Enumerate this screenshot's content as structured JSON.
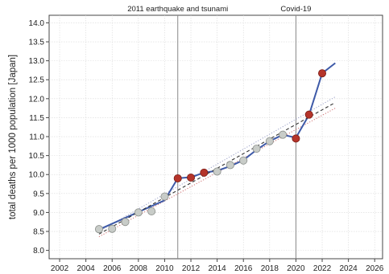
{
  "chart_data": {
    "type": "line",
    "title": "",
    "xlabel": "",
    "ylabel": "total deaths per 1000 population [Japan]",
    "xlim": [
      2001.2,
      2026.6
    ],
    "ylim": [
      7.78,
      14.2
    ],
    "xticks": [
      2002,
      2004,
      2006,
      2008,
      2010,
      2012,
      2014,
      2016,
      2018,
      2020,
      2022,
      2024,
      2026
    ],
    "xtick_labels": [
      "2002",
      "2004",
      "2006",
      "2008",
      "2010",
      "2012",
      "2014",
      "2016",
      "2018",
      "2020",
      "2022",
      "2024",
      "2026"
    ],
    "yticks": [
      8.0,
      8.5,
      9.0,
      9.5,
      10.0,
      10.5,
      11.0,
      11.5,
      12.0,
      12.5,
      13.0,
      13.5,
      14.0
    ],
    "ytick_labels": [
      "8.0",
      "8.5",
      "9.0",
      "9.5",
      "10.0",
      "10.5",
      "11.0",
      "11.5",
      "12.0",
      "12.5",
      "13.0",
      "13.5",
      "14.0"
    ],
    "grid": true,
    "events": [
      {
        "x": 2011,
        "label": "2011 earthquake and tsunami"
      },
      {
        "x": 2020,
        "label": "Covid-19"
      }
    ],
    "series": [
      {
        "kind": "points",
        "x": [
          2005,
          2006,
          2007,
          2008,
          2009,
          2010,
          2011,
          2012,
          2013,
          2014,
          2015,
          2016,
          2017,
          2018,
          2019,
          2020,
          2021,
          2022
        ],
        "y": [
          8.56,
          8.57,
          8.75,
          9.0,
          9.03,
          9.42,
          9.9,
          9.92,
          10.05,
          10.08,
          10.25,
          10.37,
          10.68,
          10.88,
          11.05,
          10.95,
          11.58,
          12.67
        ],
        "highlighted": [
          false,
          false,
          false,
          false,
          false,
          false,
          true,
          true,
          true,
          false,
          false,
          false,
          false,
          false,
          false,
          true,
          true,
          true
        ],
        "color_normal": "#c8ccc8",
        "color_highlight": "#b5342a"
      },
      {
        "kind": "line",
        "x": [
          2005,
          2010,
          2011,
          2012,
          2013,
          2014,
          2015,
          2016,
          2017,
          2018,
          2019,
          2020,
          2021,
          2022,
          2023
        ],
        "y": [
          8.55,
          9.32,
          9.9,
          9.93,
          10.05,
          10.1,
          10.22,
          10.38,
          10.65,
          10.88,
          11.05,
          10.97,
          11.57,
          12.67,
          12.94
        ],
        "color": "#3e5aa8"
      },
      {
        "kind": "trend",
        "x": [
          2005,
          2023
        ],
        "y": [
          8.43,
          11.9
        ],
        "color": "#333333",
        "style": "dashed"
      },
      {
        "kind": "band_upper",
        "x": [
          2005,
          2023
        ],
        "y": [
          8.5,
          12.05
        ],
        "color": "#9aa0c8",
        "style": "dotted"
      },
      {
        "kind": "band_lower",
        "x": [
          2005,
          2023
        ],
        "y": [
          8.36,
          11.75
        ],
        "color": "#d07070",
        "style": "dotted"
      }
    ]
  }
}
